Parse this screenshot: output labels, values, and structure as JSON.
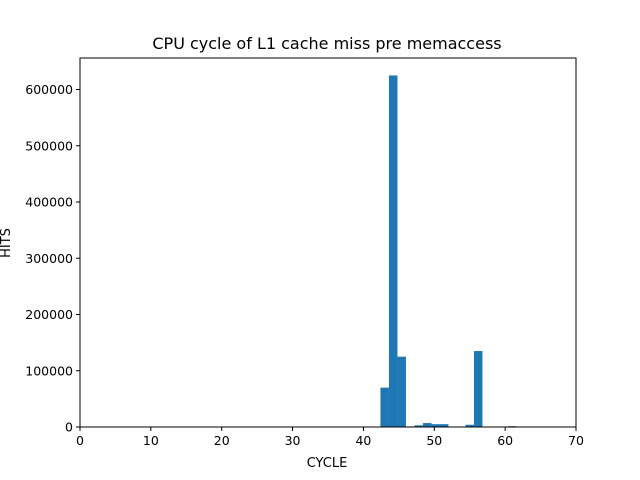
{
  "chart_data": {
    "type": "bar",
    "title": "CPU cycle of L1 cache miss pre memaccess",
    "xlabel": "CYCLE",
    "ylabel": "HITS",
    "xlim": [
      0,
      70
    ],
    "ylim": [
      0,
      656000
    ],
    "xticks": [
      0,
      10,
      20,
      30,
      40,
      50,
      60,
      70
    ],
    "yticks": [
      0,
      100000,
      200000,
      300000,
      400000,
      500000,
      600000
    ],
    "bin_width": 1.2,
    "bar_color": "#1f77b4",
    "grid": false,
    "legend": "none",
    "bins": [
      {
        "x": 42.4,
        "value": 70000
      },
      {
        "x": 43.6,
        "value": 625000
      },
      {
        "x": 44.8,
        "value": 125000
      },
      {
        "x": 46.0,
        "value": 1000
      },
      {
        "x": 47.2,
        "value": 3000
      },
      {
        "x": 48.4,
        "value": 7000
      },
      {
        "x": 49.6,
        "value": 5000
      },
      {
        "x": 50.8,
        "value": 5000
      },
      {
        "x": 52.0,
        "value": 500
      },
      {
        "x": 54.4,
        "value": 4000
      },
      {
        "x": 55.6,
        "value": 135000
      },
      {
        "x": 58.0,
        "value": 500
      },
      {
        "x": 60.4,
        "value": 1500
      },
      {
        "x": 61.6,
        "value": 500
      }
    ]
  }
}
